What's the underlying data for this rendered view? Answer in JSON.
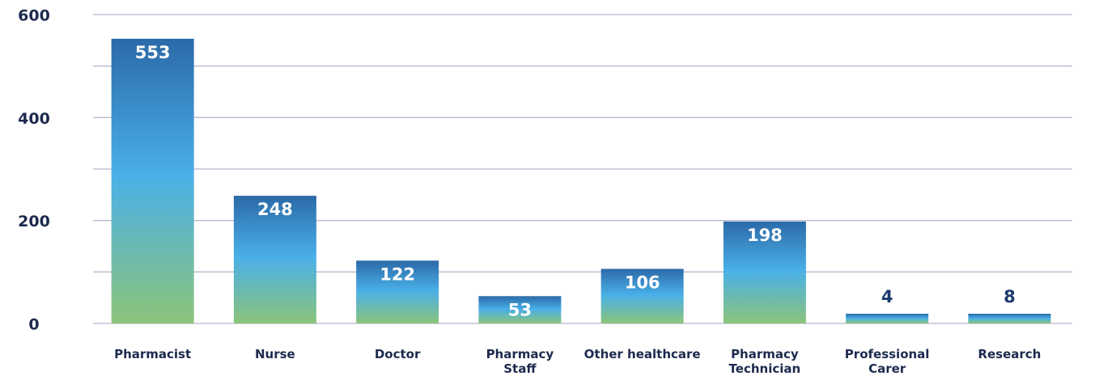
{
  "chart_data": {
    "type": "bar",
    "categories": [
      [
        "Pharmacist"
      ],
      [
        "Nurse"
      ],
      [
        "Doctor"
      ],
      [
        "Pharmacy",
        "Staff"
      ],
      [
        "Other healthcare"
      ],
      [
        "Pharmacy",
        "Technician"
      ],
      [
        "Professional",
        "Carer"
      ],
      [
        "Research"
      ]
    ],
    "values": [
      553,
      248,
      122,
      53,
      106,
      198,
      4,
      8
    ],
    "ylim": [
      0,
      600
    ],
    "yticks": [
      0,
      200,
      400,
      600
    ],
    "grid": true,
    "title": "",
    "xlabel": "",
    "ylabel": "",
    "colors": {
      "bar_top": "#2b6aa8",
      "bar_mid": "#4ab0e8",
      "bar_bottom": "#8cc47a",
      "gridline": "#b9b9cf",
      "text": "#1d2a4e"
    }
  }
}
